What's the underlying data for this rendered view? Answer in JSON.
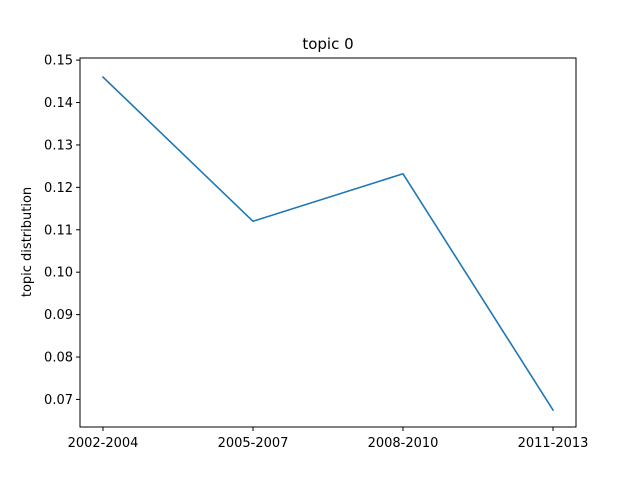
{
  "chart_data": {
    "type": "line",
    "title": "topic 0",
    "xlabel": "",
    "ylabel": "topic distribution",
    "categories": [
      "2002-2004",
      "2005-2007",
      "2008-2010",
      "2011-2013"
    ],
    "series": [
      {
        "values": [
          0.146,
          0.112,
          0.1232,
          0.0675
        ],
        "color": "#1f77b4"
      }
    ],
    "ylim": [
      0.0635,
      0.1505
    ],
    "yticks": [
      "0.07",
      "0.08",
      "0.09",
      "0.10",
      "0.11",
      "0.12",
      "0.13",
      "0.14",
      "0.15"
    ],
    "grid": false,
    "legend": "none"
  }
}
